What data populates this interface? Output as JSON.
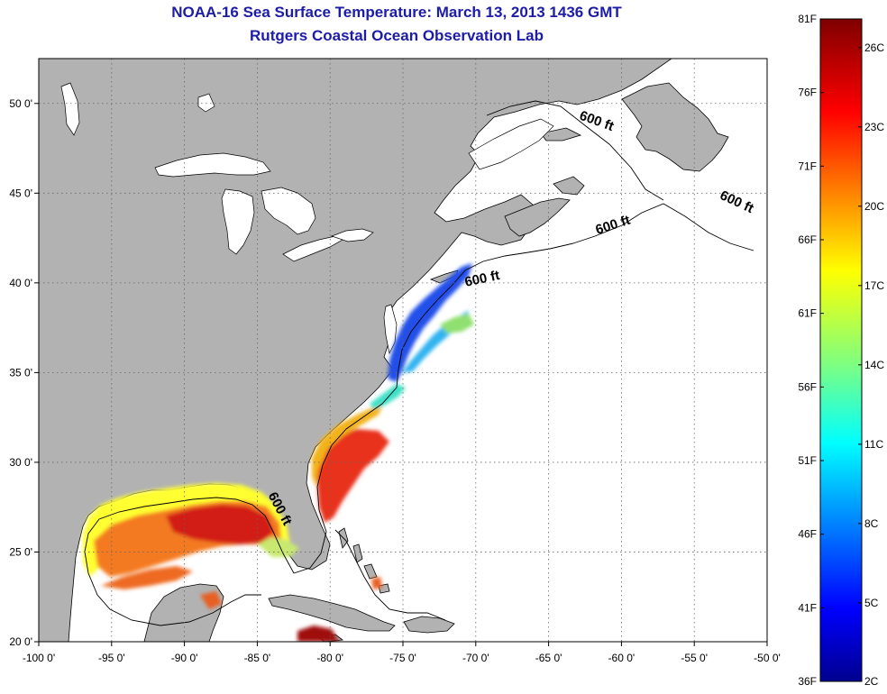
{
  "header": {
    "title": "NOAA-16 Sea Surface Temperature:  March 13, 2013 1436 GMT",
    "subtitle": "Rutgers Coastal Ocean Observation Lab"
  },
  "map": {
    "lon_range": [
      -100,
      -50
    ],
    "lat_range": [
      20,
      52.5
    ],
    "lon_ticks": [
      {
        "v": -100,
        "label": "-100 0'"
      },
      {
        "v": -95,
        "label": "-95 0'"
      },
      {
        "v": -90,
        "label": "-90 0'"
      },
      {
        "v": -85,
        "label": "-85 0'"
      },
      {
        "v": -80,
        "label": "-80 0'"
      },
      {
        "v": -75,
        "label": "-75 0'"
      },
      {
        "v": -70,
        "label": "-70 0'"
      },
      {
        "v": -65,
        "label": "-65 0'"
      },
      {
        "v": -60,
        "label": "-60 0'"
      },
      {
        "v": -55,
        "label": "-55 0'"
      },
      {
        "v": -50,
        "label": "-50 0'"
      }
    ],
    "lat_ticks": [
      {
        "v": 50,
        "label": "50 0'"
      },
      {
        "v": 45,
        "label": "45 0'"
      },
      {
        "v": 40,
        "label": "40 0'"
      },
      {
        "v": 35,
        "label": "35 0'"
      },
      {
        "v": 30,
        "label": "30 0'"
      },
      {
        "v": 25,
        "label": "25 0'"
      },
      {
        "v": 20,
        "label": "20 0'"
      }
    ],
    "contour_labels": [
      {
        "text": "600 ft",
        "lon": -61.8,
        "lat": 48.8,
        "rot": 20
      },
      {
        "text": "600 ft",
        "lon": -52.2,
        "lat": 44.3,
        "rot": 25
      },
      {
        "text": "600 ft",
        "lon": -60.5,
        "lat": 43.0,
        "rot": -18
      },
      {
        "text": "600 ft",
        "lon": -69.5,
        "lat": 40.0,
        "rot": -12
      },
      {
        "text": "600 ft",
        "lon": -83.7,
        "lat": 27.3,
        "rot": 62
      }
    ],
    "colors": {
      "land": "#b2b2b2",
      "water": "#ffffff",
      "grid": "#555555"
    }
  },
  "colorbar": {
    "f_ticks": [
      {
        "label": "81F",
        "t": 0.0
      },
      {
        "label": "76F",
        "t": 0.1111
      },
      {
        "label": "71F",
        "t": 0.2222
      },
      {
        "label": "66F",
        "t": 0.3333
      },
      {
        "label": "61F",
        "t": 0.4444
      },
      {
        "label": "56F",
        "t": 0.5556
      },
      {
        "label": "51F",
        "t": 0.6667
      },
      {
        "label": "46F",
        "t": 0.7778
      },
      {
        "label": "41F",
        "t": 0.8889
      },
      {
        "label": "36F",
        "t": 1.0
      }
    ],
    "c_ticks": [
      {
        "label": "26C",
        "t": 0.0432
      },
      {
        "label": "23C",
        "t": 0.163
      },
      {
        "label": "20C",
        "t": 0.2827
      },
      {
        "label": "17C",
        "t": 0.4025
      },
      {
        "label": "14C",
        "t": 0.5222
      },
      {
        "label": "11C",
        "t": 0.642
      },
      {
        "label": "8C",
        "t": 0.7617
      },
      {
        "label": "5C",
        "t": 0.8815
      },
      {
        "label": "2C",
        "t": 1.0
      }
    ]
  }
}
